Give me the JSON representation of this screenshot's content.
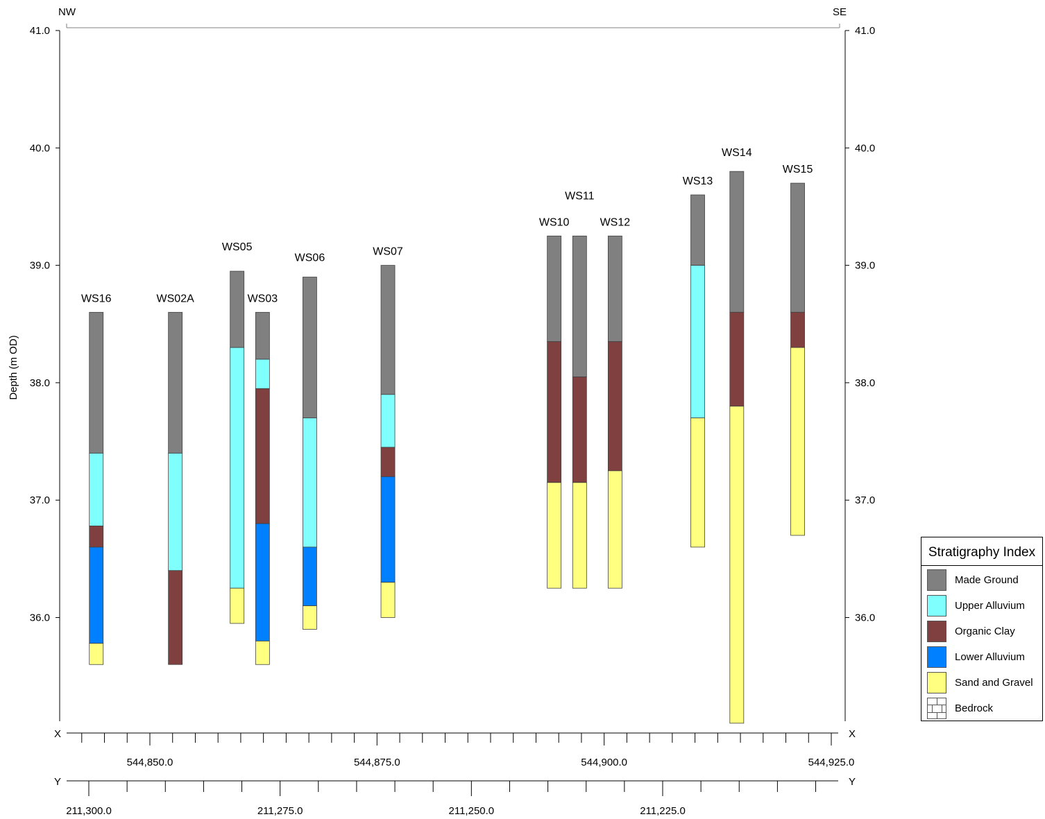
{
  "chart_data": {
    "type": "stratigraphic-section",
    "ylabel": "Depth (m OD)",
    "ylim": [
      35.0,
      41.0
    ],
    "yticks": [
      "41.0",
      "40.0",
      "39.0",
      "38.0",
      "37.0",
      "36.0"
    ],
    "ytick_values": [
      41.0,
      40.0,
      39.0,
      38.0,
      37.0,
      36.0
    ],
    "direction_left": "NW",
    "direction_right": "SE",
    "x_axis": {
      "label": "X",
      "range": [
        544840.0,
        544925.0
      ],
      "tick_labels": [
        "544,850.0",
        "544,875.0",
        "544,900.0",
        "544,925.0"
      ],
      "tick_values": [
        544850.0,
        544875.0,
        544900.0,
        544925.0
      ]
    },
    "y_axis_coord": {
      "label": "Y",
      "range": [
        211302.0,
        211205.0
      ],
      "tick_labels": [
        "211,300.0",
        "211,275.0",
        "211,250.0",
        "211,225.0"
      ],
      "tick_values": [
        211300.0,
        211275.0,
        211250.0,
        211225.0
      ]
    },
    "strata": [
      {
        "name": "Made Ground",
        "color": "#808080"
      },
      {
        "name": "Upper Alluvium",
        "color": "#80ffff"
      },
      {
        "name": "Organic Clay",
        "color": "#804040"
      },
      {
        "name": "Lower Alluvium",
        "color": "#0080ff"
      },
      {
        "name": "Sand and Gravel",
        "color": "#ffff80"
      },
      {
        "name": "Bedrock",
        "color": "#ffffff"
      }
    ],
    "boreholes": [
      {
        "name": "WS16",
        "x": 544844.1,
        "top": 38.6,
        "layers": [
          {
            "stratum": 0,
            "bottom": 37.4
          },
          {
            "stratum": 1,
            "bottom": 36.78
          },
          {
            "stratum": 2,
            "bottom": 36.6
          },
          {
            "stratum": 3,
            "bottom": 35.78
          },
          {
            "stratum": 4,
            "bottom": 35.6
          }
        ]
      },
      {
        "name": "WS02A",
        "x": 544852.8,
        "top": 38.6,
        "layers": [
          {
            "stratum": 0,
            "bottom": 37.4
          },
          {
            "stratum": 1,
            "bottom": 36.4
          },
          {
            "stratum": 2,
            "bottom": 35.6
          }
        ]
      },
      {
        "name": "WS05",
        "x": 544859.6,
        "top": 38.95,
        "layers": [
          {
            "stratum": 0,
            "bottom": 38.3
          },
          {
            "stratum": 1,
            "bottom": 36.25
          },
          {
            "stratum": 4,
            "bottom": 35.95
          }
        ]
      },
      {
        "name": "WS03",
        "x": 544862.4,
        "top": 38.6,
        "layers": [
          {
            "stratum": 0,
            "bottom": 38.2
          },
          {
            "stratum": 1,
            "bottom": 37.95
          },
          {
            "stratum": 2,
            "bottom": 36.8
          },
          {
            "stratum": 3,
            "bottom": 35.8
          },
          {
            "stratum": 4,
            "bottom": 35.6
          }
        ]
      },
      {
        "name": "WS06",
        "x": 544867.6,
        "top": 38.9,
        "layers": [
          {
            "stratum": 0,
            "bottom": 37.7
          },
          {
            "stratum": 1,
            "bottom": 36.6
          },
          {
            "stratum": 3,
            "bottom": 36.1
          },
          {
            "stratum": 4,
            "bottom": 35.9
          }
        ]
      },
      {
        "name": "WS07",
        "x": 544876.2,
        "top": 39.0,
        "layers": [
          {
            "stratum": 0,
            "bottom": 37.9
          },
          {
            "stratum": 1,
            "bottom": 37.45
          },
          {
            "stratum": 2,
            "bottom": 37.2
          },
          {
            "stratum": 3,
            "bottom": 36.3
          },
          {
            "stratum": 4,
            "bottom": 36.0
          }
        ]
      },
      {
        "name": "WS10",
        "x": 544894.5,
        "top": 39.25,
        "layers": [
          {
            "stratum": 0,
            "bottom": 38.35
          },
          {
            "stratum": 2,
            "bottom": 37.15
          },
          {
            "stratum": 4,
            "bottom": 36.25
          }
        ]
      },
      {
        "name": "WS11",
        "x": 544897.3,
        "top": 39.25,
        "layers": [
          {
            "stratum": 0,
            "bottom": 38.05
          },
          {
            "stratum": 2,
            "bottom": 37.15
          },
          {
            "stratum": 4,
            "bottom": 36.25
          }
        ]
      },
      {
        "name": "WS12",
        "x": 544901.2,
        "top": 39.25,
        "layers": [
          {
            "stratum": 0,
            "bottom": 38.35
          },
          {
            "stratum": 2,
            "bottom": 37.25
          },
          {
            "stratum": 4,
            "bottom": 36.25
          }
        ]
      },
      {
        "name": "WS13",
        "x": 544910.3,
        "top": 39.6,
        "layers": [
          {
            "stratum": 0,
            "bottom": 39.0
          },
          {
            "stratum": 1,
            "bottom": 37.7
          },
          {
            "stratum": 4,
            "bottom": 36.6
          }
        ]
      },
      {
        "name": "WS14",
        "x": 544914.6,
        "top": 39.8,
        "layers": [
          {
            "stratum": 0,
            "bottom": 38.6
          },
          {
            "stratum": 2,
            "bottom": 37.8
          },
          {
            "stratum": 4,
            "bottom": 35.1
          }
        ]
      },
      {
        "name": "WS15",
        "x": 544921.3,
        "top": 39.7,
        "layers": [
          {
            "stratum": 0,
            "bottom": 38.6
          },
          {
            "stratum": 2,
            "bottom": 38.3
          },
          {
            "stratum": 4,
            "bottom": 36.7
          }
        ]
      }
    ]
  },
  "legend": {
    "title": "Stratigraphy Index",
    "items": [
      "Made Ground",
      "Upper Alluvium",
      "Organic Clay",
      "Lower Alluvium",
      "Sand and Gravel",
      "Bedrock"
    ]
  }
}
